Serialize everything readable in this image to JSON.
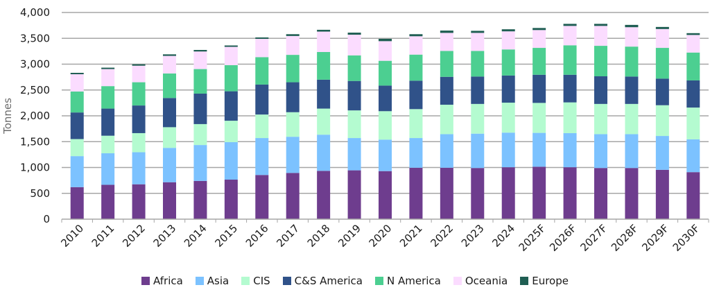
{
  "chart_data": {
    "type": "bar",
    "stacked": true,
    "title": "",
    "xlabel": "",
    "ylabel": "Tonnes",
    "ylim": [
      0,
      4000
    ],
    "yticks": [
      0,
      500,
      1000,
      1500,
      2000,
      2500,
      3000,
      3500,
      4000
    ],
    "ytick_labels": [
      "0",
      "500",
      "1,000",
      "1,500",
      "2,000",
      "2,500",
      "3,000",
      "3,500",
      "4,000"
    ],
    "grid": true,
    "legend_position": "bottom",
    "categories": [
      "2010",
      "2011",
      "2012",
      "2013",
      "2014",
      "2015",
      "2016",
      "2017",
      "2018",
      "2019",
      "2020",
      "2021",
      "2022",
      "2023",
      "2024",
      "2025F",
      "2026F",
      "2027F",
      "2028F",
      "2029F",
      "2030F"
    ],
    "series": [
      {
        "name": "Africa",
        "color": "#6e3d8e",
        "values": [
          620,
          665,
          675,
          715,
          740,
          765,
          855,
          895,
          935,
          945,
          930,
          995,
          995,
          990,
          1005,
          1015,
          1005,
          990,
          990,
          955,
          910
        ]
      },
      {
        "name": "Asia",
        "color": "#7cc2ff",
        "values": [
          600,
          610,
          620,
          665,
          695,
          725,
          715,
          700,
          700,
          625,
          610,
          575,
          650,
          665,
          670,
          655,
          660,
          655,
          655,
          655,
          635
        ]
      },
      {
        "name": "CIS",
        "color": "#b4fbd0",
        "values": [
          330,
          340,
          370,
          400,
          405,
          415,
          455,
          475,
          505,
          535,
          550,
          560,
          570,
          575,
          580,
          580,
          595,
          585,
          585,
          595,
          615
        ]
      },
      {
        "name": "C&S America",
        "color": "#305289",
        "values": [
          515,
          525,
          535,
          565,
          590,
          570,
          580,
          580,
          560,
          570,
          495,
          550,
          540,
          530,
          525,
          545,
          535,
          535,
          530,
          515,
          525
        ]
      },
      {
        "name": "N America",
        "color": "#4ccf91",
        "values": [
          405,
          435,
          450,
          475,
          475,
          505,
          530,
          530,
          535,
          495,
          480,
          505,
          500,
          495,
          505,
          520,
          570,
          590,
          580,
          595,
          540
        ]
      },
      {
        "name": "Oceania",
        "color": "#fbdcff",
        "values": [
          335,
          330,
          320,
          340,
          340,
          355,
          355,
          365,
          395,
          400,
          380,
          355,
          350,
          350,
          350,
          345,
          375,
          385,
          375,
          365,
          340
        ]
      },
      {
        "name": "Europe",
        "color": "#1f5e53",
        "values": [
          27,
          27,
          28,
          30,
          30,
          27,
          27,
          35,
          35,
          40,
          45,
          40,
          45,
          40,
          40,
          40,
          40,
          40,
          45,
          40,
          35
        ]
      }
    ]
  }
}
